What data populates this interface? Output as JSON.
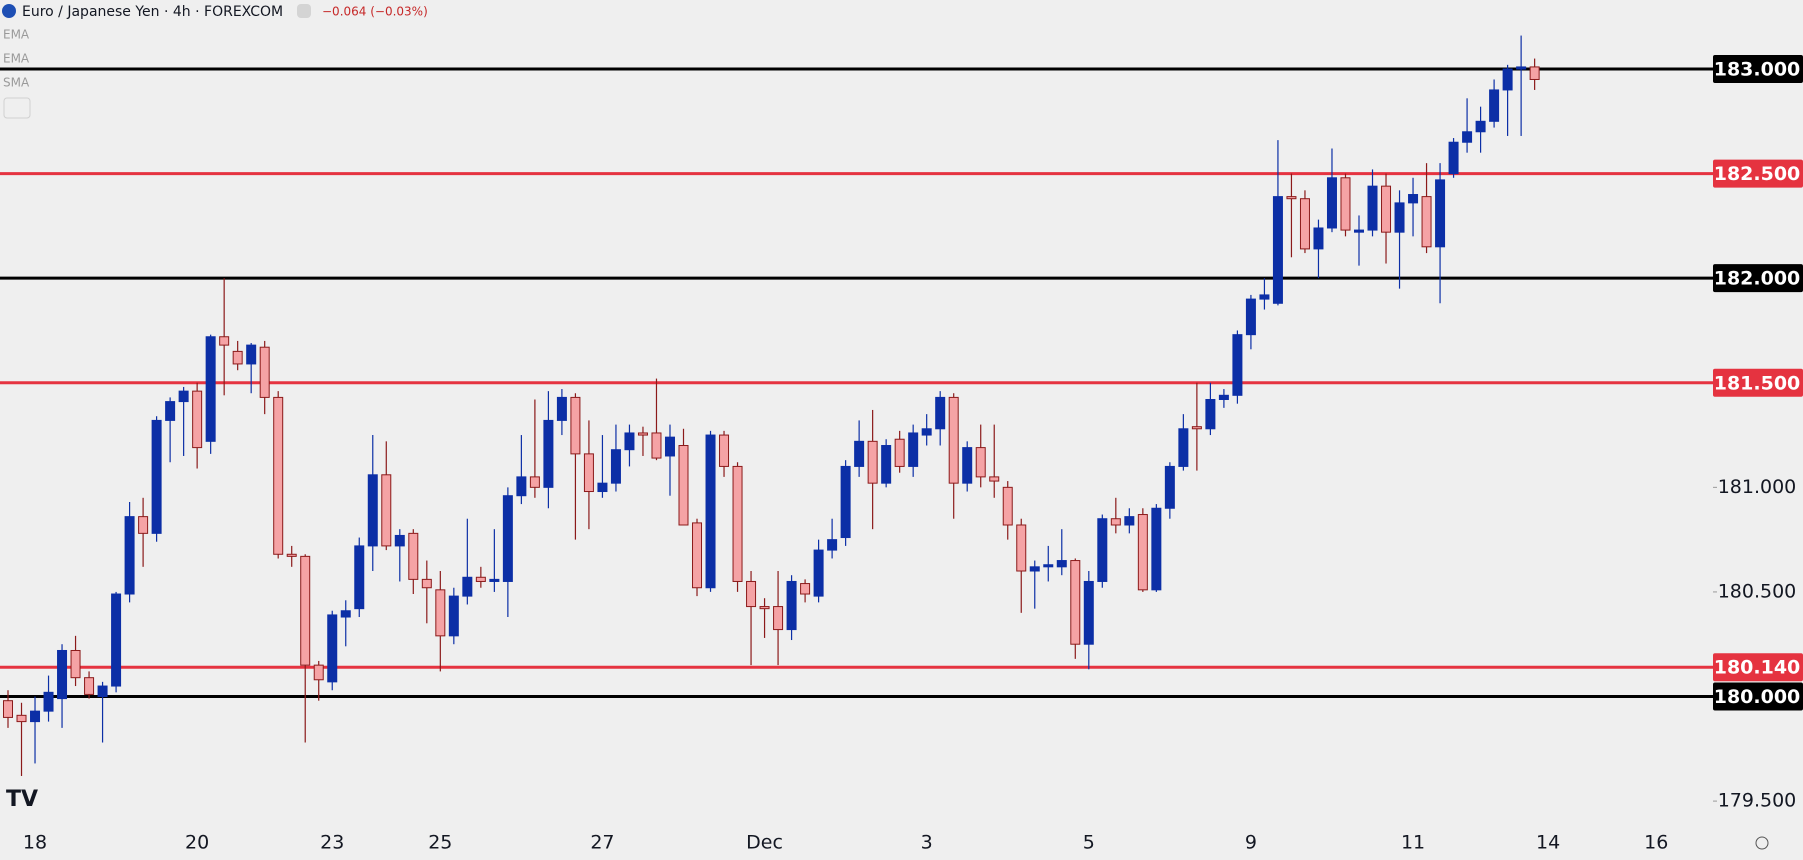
{
  "chart_data": {
    "type": "candlestick",
    "title": "Euro / Japanese Yen · 4h · FOREXCOM",
    "change": "−0.064 (−0.03%)",
    "indicators": [
      "EMA",
      "EMA",
      "SMA"
    ],
    "up_color": "#0c2fa6",
    "down_color": "#f5a3a5",
    "down_border": "#8b1a1a",
    "categories": [
      null,
      null,
      "18",
      null,
      null,
      null,
      null,
      null,
      null,
      null,
      null,
      null,
      null,
      null,
      "20",
      null,
      null,
      null,
      null,
      null,
      null,
      null,
      null,
      null,
      "23",
      null,
      null,
      null,
      null,
      null,
      null,
      null,
      "25",
      null,
      null,
      null,
      null,
      null,
      null,
      null,
      null,
      null,
      null,
      null,
      "27",
      null,
      null,
      null,
      null,
      null,
      null,
      null,
      null,
      null,
      null,
      null,
      "Dec",
      null,
      null,
      null,
      null,
      null,
      null,
      null,
      null,
      null,
      null,
      null,
      "3",
      null,
      null,
      null,
      null,
      null,
      null,
      null,
      null,
      null,
      null,
      null,
      "5",
      null,
      null,
      null,
      null,
      null,
      null,
      null,
      null,
      null,
      null,
      null,
      "9",
      null,
      null,
      null,
      null,
      null,
      null,
      null,
      null,
      null,
      null,
      null,
      "11",
      null,
      null,
      null,
      null,
      null,
      null,
      null,
      null,
      null,
      "14",
      null,
      null,
      null,
      null,
      null,
      null,
      null,
      "16",
      null
    ],
    "open": [
      179.98,
      179.91,
      179.88,
      179.93,
      179.99,
      180.22,
      180.09,
      180.0,
      180.05,
      180.49,
      180.86,
      180.78,
      181.32,
      181.41,
      181.46,
      181.22,
      181.72,
      181.65,
      181.59,
      181.67,
      181.43,
      180.68,
      180.67,
      180.15,
      180.07,
      180.38,
      180.42,
      180.72,
      181.06,
      180.72,
      180.78,
      180.56,
      180.51,
      180.29,
      180.48,
      180.57,
      180.55,
      180.55,
      180.96,
      181.05,
      181.0,
      181.32,
      181.43,
      181.16,
      180.98,
      181.02,
      181.18,
      181.26,
      181.26,
      181.15,
      181.2,
      180.83,
      180.52,
      181.25,
      181.1,
      180.55,
      180.43,
      180.43,
      180.32,
      180.54,
      180.48,
      180.7,
      180.76,
      181.1,
      181.22,
      181.02,
      181.23,
      181.1,
      181.25,
      181.28,
      181.43,
      181.02,
      181.19,
      181.05,
      181.0,
      180.82,
      180.6,
      180.62,
      180.62,
      180.65,
      180.25,
      180.55,
      180.85,
      180.82,
      180.87,
      180.51,
      180.9,
      181.1,
      181.29,
      181.28,
      181.42,
      181.44,
      181.73,
      181.9,
      181.88,
      182.39,
      182.38,
      182.14,
      182.24,
      182.48,
      182.22,
      182.23,
      182.44,
      182.22,
      182.36,
      182.39,
      182.15,
      182.5,
      182.65,
      182.7,
      182.75,
      182.9,
      183.0,
      183.01,
      null,
      null,
      null,
      null,
      null,
      null,
      null,
      null,
      null,
      null
    ],
    "high": [
      180.03,
      179.97,
      180.0,
      180.1,
      180.25,
      180.29,
      180.12,
      180.07,
      180.5,
      180.93,
      180.95,
      181.34,
      181.43,
      181.48,
      181.5,
      181.73,
      182.0,
      181.7,
      181.69,
      181.7,
      181.46,
      180.72,
      180.68,
      180.17,
      180.41,
      180.46,
      180.76,
      181.25,
      181.22,
      180.8,
      180.8,
      180.65,
      180.6,
      180.52,
      180.85,
      180.62,
      180.8,
      181.0,
      181.25,
      181.42,
      181.46,
      181.47,
      181.45,
      181.32,
      181.25,
      181.3,
      181.3,
      181.29,
      181.52,
      181.3,
      181.28,
      180.85,
      181.27,
      181.27,
      181.12,
      180.6,
      180.47,
      180.6,
      180.58,
      180.56,
      180.75,
      180.85,
      181.13,
      181.32,
      181.37,
      181.23,
      181.27,
      181.3,
      181.35,
      181.46,
      181.45,
      181.22,
      181.3,
      181.3,
      181.03,
      180.85,
      180.65,
      180.72,
      180.8,
      180.66,
      180.6,
      180.87,
      180.95,
      180.9,
      180.9,
      180.92,
      181.12,
      181.35,
      181.5,
      181.5,
      181.47,
      181.75,
      181.92,
      182.0,
      182.66,
      182.5,
      182.42,
      182.28,
      182.62,
      182.5,
      182.3,
      182.52,
      182.5,
      182.42,
      182.48,
      182.55,
      182.55,
      182.67,
      182.86,
      182.82,
      182.95,
      183.02,
      183.16,
      183.05,
      null,
      null,
      null,
      null,
      null,
      null,
      null,
      null,
      null,
      null
    ],
    "low": [
      179.85,
      179.62,
      179.68,
      179.88,
      179.85,
      180.05,
      179.99,
      179.78,
      180.02,
      180.45,
      180.62,
      180.74,
      181.12,
      181.15,
      181.09,
      181.16,
      181.44,
      181.56,
      181.45,
      181.35,
      180.66,
      180.62,
      179.78,
      179.98,
      180.03,
      180.24,
      180.38,
      180.6,
      180.7,
      180.55,
      180.49,
      180.35,
      180.12,
      180.25,
      180.44,
      180.52,
      180.5,
      180.38,
      180.92,
      180.95,
      180.9,
      181.25,
      180.75,
      180.8,
      180.95,
      180.98,
      181.1,
      181.15,
      181.13,
      180.96,
      180.82,
      180.48,
      180.5,
      181.05,
      180.5,
      180.15,
      180.28,
      180.15,
      180.27,
      180.45,
      180.45,
      180.66,
      180.72,
      181.05,
      180.8,
      181.0,
      181.07,
      181.05,
      181.2,
      181.2,
      180.85,
      180.98,
      181.0,
      180.95,
      180.75,
      180.4,
      180.42,
      180.55,
      180.58,
      180.18,
      180.13,
      180.52,
      180.78,
      180.78,
      180.5,
      180.5,
      180.85,
      181.08,
      181.08,
      181.25,
      181.38,
      181.4,
      181.66,
      181.85,
      181.87,
      182.1,
      182.12,
      182.0,
      182.22,
      182.2,
      182.06,
      182.2,
      182.07,
      181.95,
      182.2,
      182.12,
      181.88,
      182.48,
      182.6,
      182.6,
      182.72,
      182.68,
      182.68,
      182.9,
      null,
      null,
      null,
      null,
      null,
      null,
      null,
      null,
      null,
      null
    ],
    "close": [
      179.9,
      179.88,
      179.93,
      180.02,
      180.22,
      180.09,
      180.01,
      180.05,
      180.49,
      180.86,
      180.78,
      181.32,
      181.41,
      181.46,
      181.19,
      181.72,
      181.68,
      181.59,
      181.68,
      181.43,
      180.68,
      180.67,
      180.15,
      180.08,
      180.39,
      180.41,
      180.72,
      181.06,
      180.72,
      180.77,
      180.56,
      180.52,
      180.29,
      180.48,
      180.57,
      180.55,
      180.56,
      180.96,
      181.05,
      181.0,
      181.32,
      181.43,
      181.16,
      180.98,
      181.02,
      181.18,
      181.26,
      181.25,
      181.14,
      181.24,
      180.82,
      180.52,
      181.25,
      181.1,
      180.55,
      180.43,
      180.42,
      180.32,
      180.55,
      180.49,
      180.7,
      180.75,
      181.1,
      181.22,
      181.02,
      181.2,
      181.1,
      181.26,
      181.28,
      181.43,
      181.02,
      181.19,
      181.05,
      181.03,
      180.82,
      180.6,
      180.62,
      180.63,
      180.65,
      180.25,
      180.55,
      180.85,
      180.82,
      180.86,
      180.51,
      180.9,
      181.1,
      181.28,
      181.28,
      181.42,
      181.44,
      181.73,
      181.9,
      181.92,
      182.39,
      182.38,
      182.14,
      182.24,
      182.48,
      182.23,
      182.23,
      182.44,
      182.22,
      182.36,
      182.4,
      182.15,
      182.47,
      182.65,
      182.7,
      182.75,
      182.9,
      183.0,
      183.01,
      182.95,
      null,
      null,
      null,
      null,
      null,
      null,
      null,
      null,
      null,
      null
    ],
    "ylim": [
      179.4,
      183.33
    ],
    "yticks": [
      {
        "value": 179.5,
        "label": "179.500"
      },
      {
        "value": 180.5,
        "label": "180.500"
      },
      {
        "value": 181,
        "label": "181.000"
      }
    ],
    "levels": [
      {
        "value": 183,
        "label": "183.000",
        "color": "#000000"
      },
      {
        "value": 182.5,
        "label": "182.500",
        "color": "#e53340"
      },
      {
        "value": 182,
        "label": "182.000",
        "color": "#000000"
      },
      {
        "value": 181.5,
        "label": "181.500",
        "color": "#e53340"
      },
      {
        "value": 180.14,
        "label": "180.140",
        "color": "#e53340"
      },
      {
        "value": 180,
        "label": "180.000",
        "color": "#000000"
      }
    ]
  }
}
